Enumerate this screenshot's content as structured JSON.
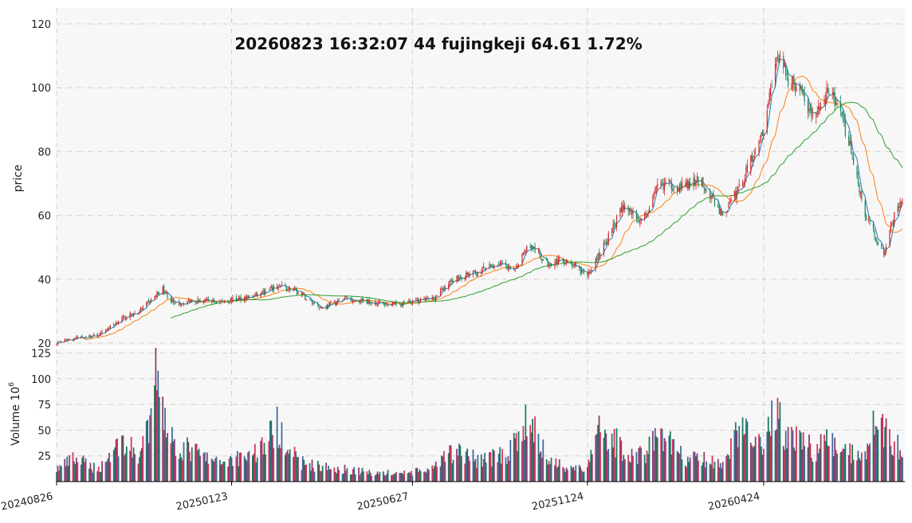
{
  "chart_data": [
    {
      "type": "candlestick",
      "title": "20260823 16:32:07  44  fujingkeji  64.61 1.72%",
      "ylabel": "price",
      "ylim": [
        19,
        125
      ],
      "yticks": [
        20,
        40,
        60,
        80,
        100,
        120
      ],
      "grid": true,
      "x_start": "20240826",
      "x_end": "20260823",
      "x_tick_labels": [
        "20240826",
        "20250123",
        "20250627",
        "20251124",
        "20260424"
      ],
      "price_anchors": [
        [
          "20240826",
          20
        ],
        [
          "20240910",
          21.5
        ],
        [
          "20241001",
          22.5
        ],
        [
          "20241020",
          27.5
        ],
        [
          "20241105",
          30
        ],
        [
          "20241125",
          37
        ],
        [
          "20241205",
          32
        ],
        [
          "20241220",
          33.5
        ],
        [
          "20250110",
          33
        ],
        [
          "20250123",
          33.5
        ],
        [
          "20250215",
          35
        ],
        [
          "20250305",
          38
        ],
        [
          "20250320",
          36
        ],
        [
          "20250410",
          31
        ],
        [
          "20250501",
          34
        ],
        [
          "20250520",
          33
        ],
        [
          "20250610",
          32
        ],
        [
          "20250627",
          33
        ],
        [
          "20250715",
          34
        ],
        [
          "20250801",
          40
        ],
        [
          "20250820",
          42
        ],
        [
          "20250910",
          45
        ],
        [
          "20250920",
          42
        ],
        [
          "20251005",
          51
        ],
        [
          "20251020",
          45
        ],
        [
          "20251105",
          46
        ],
        [
          "20251124",
          41
        ],
        [
          "20251210",
          52
        ],
        [
          "20251225",
          63
        ],
        [
          "20260110",
          58
        ],
        [
          "20260125",
          70
        ],
        [
          "20260215",
          69
        ],
        [
          "20260301",
          71
        ],
        [
          "20260320",
          60
        ],
        [
          "20260405",
          70
        ],
        [
          "20260424",
          88
        ],
        [
          "20260505",
          110
        ],
        [
          "20260515",
          103
        ],
        [
          "20260525",
          100
        ],
        [
          "20260605",
          90
        ],
        [
          "20260620",
          100
        ],
        [
          "20260705",
          85
        ],
        [
          "20260720",
          60
        ],
        [
          "20260805",
          48
        ],
        [
          "20260815",
          62
        ],
        [
          "20260823",
          64.61
        ]
      ],
      "moving_averages": [
        {
          "window": 5,
          "color": "#1f77b4",
          "start": "20240826"
        },
        {
          "window": 20,
          "color": "#ff7f0e",
          "start": "20240901"
        },
        {
          "window": 60,
          "color": "#2ca02c",
          "start": "20241201"
        }
      ],
      "colors": {
        "up": "#d62728",
        "down": "#1a8a5a"
      }
    },
    {
      "type": "bar",
      "ylabel": "Volume",
      "ylabel_unit_base": "10",
      "ylabel_unit_exp": "6",
      "ylim": [
        0,
        130
      ],
      "yticks": [
        25,
        50,
        75,
        100,
        125
      ],
      "grid": true,
      "volume_anchors": [
        [
          "20240826",
          12
        ],
        [
          "20240910",
          22
        ],
        [
          "20241001",
          12
        ],
        [
          "20241020",
          40
        ],
        [
          "20241105",
          25
        ],
        [
          "20241115",
          55
        ],
        [
          "20241120",
          128
        ],
        [
          "20241125",
          75
        ],
        [
          "20241205",
          35
        ],
        [
          "20241220",
          30
        ],
        [
          "20250110",
          18
        ],
        [
          "20250123",
          22
        ],
        [
          "20250215",
          30
        ],
        [
          "20250305",
          55
        ],
        [
          "20250320",
          20
        ],
        [
          "20250410",
          14
        ],
        [
          "20250501",
          12
        ],
        [
          "20250520",
          9
        ],
        [
          "20250610",
          8
        ],
        [
          "20250627",
          9
        ],
        [
          "20250715",
          12
        ],
        [
          "20250801",
          30
        ],
        [
          "20250820",
          22
        ],
        [
          "20250910",
          25
        ],
        [
          "20250920",
          30
        ],
        [
          "20251005",
          62
        ],
        [
          "20251020",
          22
        ],
        [
          "20251105",
          15
        ],
        [
          "20251124",
          12
        ],
        [
          "20251205",
          55
        ],
        [
          "20251225",
          30
        ],
        [
          "20260110",
          25
        ],
        [
          "20260125",
          48
        ],
        [
          "20260215",
          22
        ],
        [
          "20260301",
          22
        ],
        [
          "20260320",
          15
        ],
        [
          "20260405",
          55
        ],
        [
          "20260424",
          38
        ],
        [
          "20260505",
          68
        ],
        [
          "20260515",
          42
        ],
        [
          "20260525",
          45
        ],
        [
          "20260605",
          30
        ],
        [
          "20260620",
          38
        ],
        [
          "20260705",
          28
        ],
        [
          "20260720",
          30
        ],
        [
          "20260801",
          65
        ],
        [
          "20260810",
          38
        ],
        [
          "20260823",
          30
        ]
      ],
      "colors": [
        "#1a7a55",
        "#8a3a6a",
        "#d6305a",
        "#3a6a9a"
      ]
    }
  ]
}
